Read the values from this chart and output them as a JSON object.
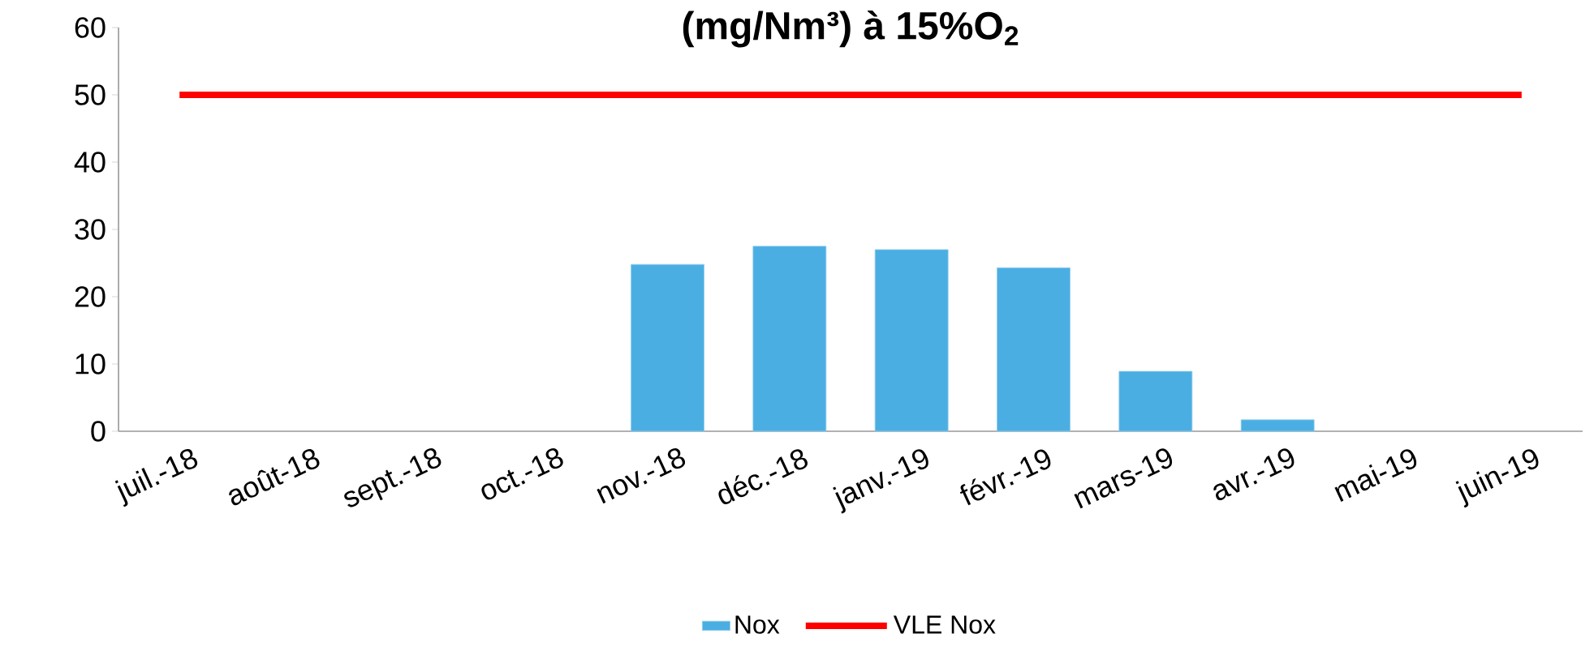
{
  "chart_data": {
    "type": "bar",
    "title": "(mg/Nm³) à 15%O$_{2}$",
    "categories": [
      "juil.-18",
      "août-18",
      "sept.-18",
      "oct.-18",
      "nov.-18",
      "déc.-18",
      "janv.-19",
      "févr.-19",
      "mars-19",
      "avr.-19",
      "mai-19",
      "juin-19"
    ],
    "series": [
      {
        "name": "Nox",
        "color": "#4baee2",
        "values": [
          null,
          null,
          null,
          null,
          24.8,
          27.5,
          27.0,
          24.3,
          8.9,
          1.7,
          null,
          null
        ]
      },
      {
        "name": "VLE Nox",
        "type": "line",
        "color": "#ff0000",
        "values": [
          50,
          50,
          50,
          50,
          50,
          50,
          50,
          50,
          50,
          50,
          50,
          50
        ]
      }
    ],
    "ylim": [
      0,
      60
    ],
    "yticks": [
      0,
      10,
      20,
      30,
      40,
      50,
      60
    ],
    "grid": false,
    "legend": "bottom",
    "marker": "none"
  }
}
